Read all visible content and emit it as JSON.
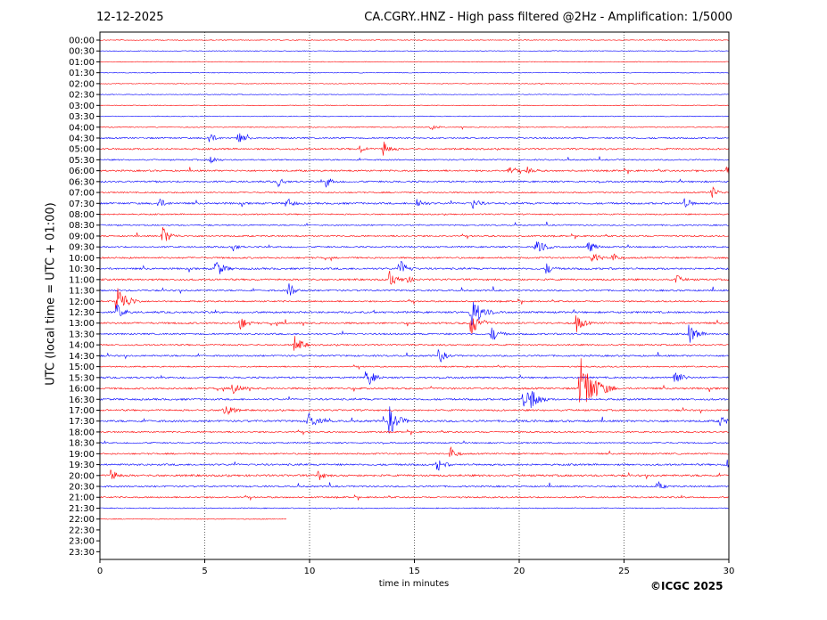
{
  "header": {
    "date": "12-12-2025",
    "title": "CA.CGRY..HNZ - High pass filtered @2Hz - Amplification: 1/5000"
  },
  "footer": {
    "copyright": "©ICGC 2025"
  },
  "colors": {
    "trace_a": "#ff0000",
    "trace_b": "#0000ff",
    "frame": "#000000",
    "grid": "#000000"
  },
  "chart_data": {
    "type": "line",
    "title": "CA.CGRY..HNZ - High pass filtered @2Hz - Amplification: 1/5000",
    "xlabel": "time in minutes",
    "ylabel": "UTC (local time = UTC + 01:00)",
    "xlim": [
      0,
      30
    ],
    "xticks": [
      0,
      5,
      10,
      15,
      20,
      25,
      30
    ],
    "grid": "vertical dotted lines at each x tick",
    "rows": [
      "00:00",
      "00:30",
      "01:00",
      "01:30",
      "02:00",
      "02:30",
      "03:00",
      "03:30",
      "04:00",
      "04:30",
      "05:00",
      "05:30",
      "06:00",
      "06:30",
      "07:00",
      "07:30",
      "08:00",
      "08:30",
      "09:00",
      "09:30",
      "10:00",
      "10:30",
      "11:00",
      "11:30",
      "12:00",
      "12:30",
      "13:00",
      "13:30",
      "14:00",
      "14:30",
      "15:00",
      "15:30",
      "16:00",
      "16:30",
      "17:00",
      "17:30",
      "18:00",
      "18:30",
      "19:00",
      "19:30",
      "20:00",
      "20:30",
      "21:00",
      "21:30",
      "22:00",
      "22:30",
      "23:00",
      "23:30"
    ],
    "data_end": {
      "row": "22:00",
      "minute": 8.9
    },
    "row_activity": [
      0.05,
      0.05,
      0.05,
      0.05,
      0.05,
      0.05,
      0.05,
      0.1,
      0.2,
      0.5,
      0.6,
      0.4,
      0.6,
      0.6,
      0.4,
      0.7,
      0.4,
      0.4,
      0.5,
      0.5,
      0.6,
      0.7,
      0.7,
      0.6,
      0.5,
      0.7,
      0.7,
      0.6,
      0.5,
      0.6,
      0.4,
      0.6,
      0.7,
      0.7,
      0.6,
      0.8,
      0.5,
      0.4,
      0.5,
      0.7,
      0.8,
      0.6,
      0.5,
      0.2,
      0.1,
      0,
      0,
      0
    ],
    "events": [
      {
        "row": "04:00",
        "minute": 15.8,
        "amplitude": 0.3
      },
      {
        "row": "04:30",
        "minute": 5.2,
        "amplitude": 0.5
      },
      {
        "row": "04:30",
        "minute": 6.6,
        "amplitude": 0.5
      },
      {
        "row": "05:00",
        "minute": 12.4,
        "amplitude": 0.4
      },
      {
        "row": "05:00",
        "minute": 13.5,
        "amplitude": 0.7
      },
      {
        "row": "05:30",
        "minute": 5.3,
        "amplitude": 0.4
      },
      {
        "row": "06:00",
        "minute": 19.5,
        "amplitude": 0.4
      },
      {
        "row": "06:00",
        "minute": 20.4,
        "amplitude": 0.4
      },
      {
        "row": "06:00",
        "minute": 29.9,
        "amplitude": 0.6
      },
      {
        "row": "06:30",
        "minute": 8.5,
        "amplitude": 0.4
      },
      {
        "row": "06:30",
        "minute": 10.8,
        "amplitude": 0.5
      },
      {
        "row": "07:00",
        "minute": 29.2,
        "amplitude": 0.5
      },
      {
        "row": "07:30",
        "minute": 2.8,
        "amplitude": 0.5
      },
      {
        "row": "07:30",
        "minute": 8.9,
        "amplitude": 0.5
      },
      {
        "row": "07:30",
        "minute": 15.1,
        "amplitude": 0.5
      },
      {
        "row": "07:30",
        "minute": 17.8,
        "amplitude": 0.5
      },
      {
        "row": "07:30",
        "minute": 27.9,
        "amplitude": 0.5
      },
      {
        "row": "09:00",
        "minute": 3.0,
        "amplitude": 0.8
      },
      {
        "row": "09:30",
        "minute": 6.3,
        "amplitude": 0.4
      },
      {
        "row": "09:30",
        "minute": 20.8,
        "amplitude": 0.9
      },
      {
        "row": "09:30",
        "minute": 23.3,
        "amplitude": 0.6
      },
      {
        "row": "10:00",
        "minute": 23.5,
        "amplitude": 0.6
      },
      {
        "row": "10:00",
        "minute": 24.4,
        "amplitude": 0.5
      },
      {
        "row": "10:30",
        "minute": 5.5,
        "amplitude": 0.9
      },
      {
        "row": "10:30",
        "minute": 14.3,
        "amplitude": 0.8
      },
      {
        "row": "10:30",
        "minute": 21.3,
        "amplitude": 0.5
      },
      {
        "row": "11:00",
        "minute": 13.8,
        "amplitude": 0.7
      },
      {
        "row": "11:00",
        "minute": 14.6,
        "amplitude": 0.4
      },
      {
        "row": "11:00",
        "minute": 27.5,
        "amplitude": 0.4
      },
      {
        "row": "11:30",
        "minute": 9.0,
        "amplitude": 0.6
      },
      {
        "row": "12:00",
        "minute": 0.8,
        "amplitude": 1.5
      },
      {
        "row": "12:30",
        "minute": 0.8,
        "amplitude": 0.7
      },
      {
        "row": "12:30",
        "minute": 17.7,
        "amplitude": 1.5
      },
      {
        "row": "13:00",
        "minute": 6.7,
        "amplitude": 0.6
      },
      {
        "row": "13:00",
        "minute": 17.7,
        "amplitude": 1.1
      },
      {
        "row": "13:00",
        "minute": 22.7,
        "amplitude": 0.8
      },
      {
        "row": "13:30",
        "minute": 28.1,
        "amplitude": 0.9
      },
      {
        "row": "13:30",
        "minute": 18.7,
        "amplitude": 0.7
      },
      {
        "row": "14:00",
        "minute": 9.3,
        "amplitude": 0.8
      },
      {
        "row": "14:30",
        "minute": 16.2,
        "amplitude": 0.6
      },
      {
        "row": "15:30",
        "minute": 12.7,
        "amplitude": 0.9
      },
      {
        "row": "15:30",
        "minute": 27.4,
        "amplitude": 0.8
      },
      {
        "row": "16:00",
        "minute": 6.4,
        "amplitude": 0.6
      },
      {
        "row": "16:00",
        "minute": 22.9,
        "amplitude": 2.6
      },
      {
        "row": "16:30",
        "minute": 20.2,
        "amplitude": 0.9
      },
      {
        "row": "16:30",
        "minute": 20.6,
        "amplitude": 0.9
      },
      {
        "row": "17:00",
        "minute": 5.9,
        "amplitude": 0.8
      },
      {
        "row": "17:30",
        "minute": 9.9,
        "amplitude": 0.9
      },
      {
        "row": "17:30",
        "minute": 13.8,
        "amplitude": 1.2
      },
      {
        "row": "17:30",
        "minute": 29.6,
        "amplitude": 0.5
      },
      {
        "row": "19:00",
        "minute": 16.7,
        "amplitude": 0.6
      },
      {
        "row": "19:30",
        "minute": 16.1,
        "amplitude": 0.6
      },
      {
        "row": "19:30",
        "minute": 29.9,
        "amplitude": 0.5
      },
      {
        "row": "20:00",
        "minute": 0.5,
        "amplitude": 0.6
      },
      {
        "row": "20:00",
        "minute": 10.4,
        "amplitude": 0.5
      },
      {
        "row": "20:30",
        "minute": 26.6,
        "amplitude": 0.4
      }
    ]
  }
}
